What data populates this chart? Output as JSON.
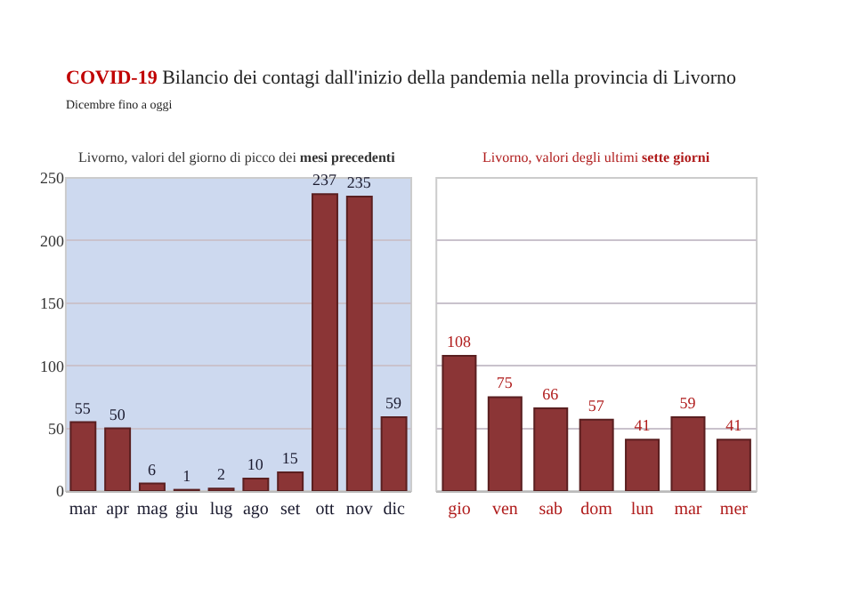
{
  "chart_data": [
    {
      "type": "bar",
      "title": "COVID-19 Bilancio dei contagi dall'inizio della pandemia nella provincia di Livorno",
      "subtitle": "Dicembre fino a oggi",
      "annotations": [
        "Livorno, valori del giorno di picco dei mesi precedenti"
      ],
      "categories": [
        "mar",
        "apr",
        "mag",
        "giu",
        "lug",
        "ago",
        "set",
        "ott",
        "nov",
        "dic"
      ],
      "values": [
        55,
        50,
        6,
        1,
        2,
        10,
        15,
        237,
        235,
        59
      ],
      "color": "#8b3536",
      "ylim": [
        0,
        250
      ],
      "yticks": [
        0,
        50,
        100,
        150,
        200,
        250
      ],
      "grid": true,
      "data_labels": true
    },
    {
      "type": "bar",
      "title": "Livorno, valori degli ultimi sette giorni",
      "categories": [
        "gio",
        "ven",
        "sab",
        "dom",
        "lun",
        "mar",
        "mer"
      ],
      "values": [
        108,
        75,
        66,
        57,
        41,
        59,
        41
      ],
      "color": "#8b3536",
      "ylim": [
        0,
        250
      ],
      "yticks": [
        0,
        50,
        100,
        150,
        200,
        250
      ],
      "grid": true,
      "data_labels": true,
      "tick_labels": "x"
    }
  ]
}
